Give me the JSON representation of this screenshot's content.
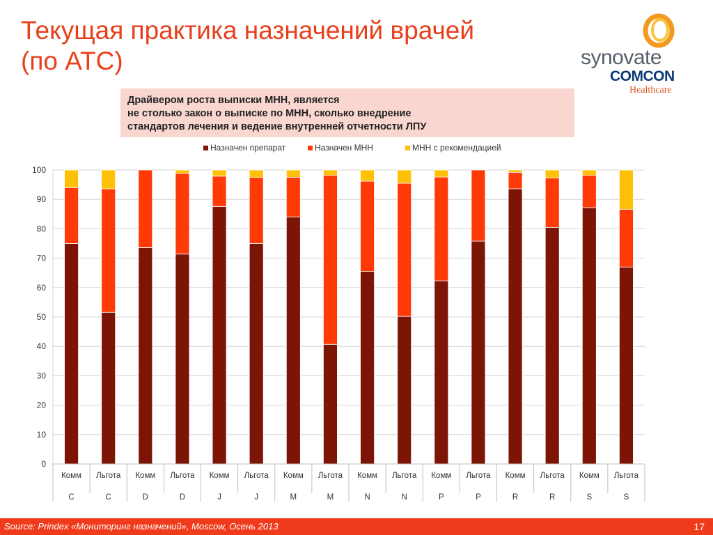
{
  "slide": {
    "title_line1": "Текущая практика назначений врачей",
    "title_line2": "(по АТС)",
    "logo": {
      "word1": "synovate",
      "word2": "COMCON",
      "word3": "Healthcare"
    },
    "callout": [
      "Драйвером роста выписки МНН, является",
      "не столько закон о выписке по МНН, сколько внедрение",
      "стандартов лечения и ведение внутренней отчетности ЛПУ"
    ],
    "source": "Source: Prindex «Мониторинг назначений», Moscow, Осень 2013",
    "page_number": "17"
  },
  "colors": {
    "series1": "#7c1506",
    "series2": "#ff3a06",
    "series3": "#ffc107",
    "grid": "#d4d4d4",
    "accent": "#e8401c"
  },
  "chart_data": {
    "type": "bar",
    "stacked": true,
    "categories": [
      "Комм",
      "Льгота",
      "Комм",
      "Льгота",
      "Комм",
      "Льгота",
      "Комм",
      "Льгота",
      "Комм",
      "Льгота",
      "Комм",
      "Льгота",
      "Комм",
      "Льгота",
      "Комм",
      "Льгота"
    ],
    "groups": [
      "C",
      "C",
      "D",
      "D",
      "J",
      "J",
      "M",
      "M",
      "N",
      "N",
      "P",
      "P",
      "R",
      "R",
      "S",
      "S"
    ],
    "series": [
      {
        "name": "Назначен препарат",
        "values": [
          75,
          51.6,
          73.6,
          71.4,
          87.6,
          75,
          84,
          40.7,
          65.5,
          50.2,
          62.3,
          75.8,
          93.6,
          80.5,
          87.2,
          67
        ]
      },
      {
        "name": "Назначен МНН",
        "values": [
          19,
          42,
          26.4,
          27.4,
          10.3,
          22.5,
          13.5,
          57.5,
          30.7,
          45.3,
          35.3,
          24.2,
          5.6,
          16.8,
          11,
          19.6
        ]
      },
      {
        "name": "МНН с рекомендацией",
        "values": [
          6,
          6.4,
          0,
          1.2,
          2.1,
          2.5,
          2.5,
          1.8,
          3.8,
          4.5,
          2.4,
          0,
          0.8,
          2.7,
          1.8,
          13.4
        ]
      }
    ],
    "ylim": [
      0,
      100
    ],
    "yticks": [
      0,
      10,
      20,
      30,
      40,
      50,
      60,
      70,
      80,
      90,
      100
    ],
    "grid": true,
    "legend_position": "top"
  }
}
